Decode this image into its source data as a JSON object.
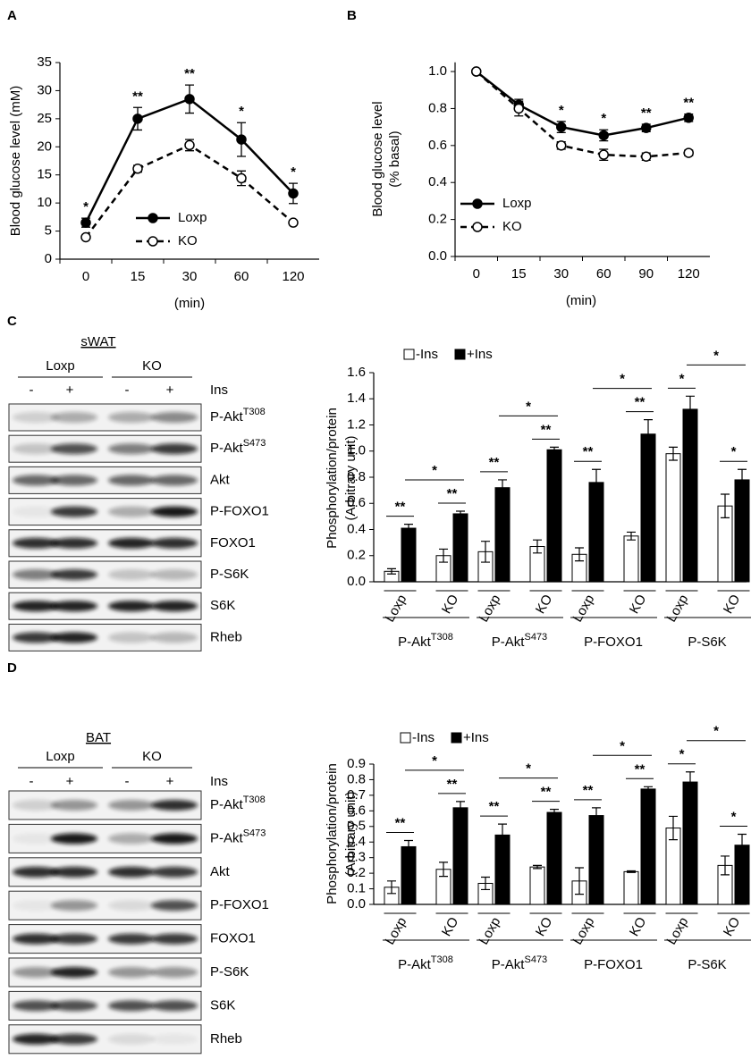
{
  "panel_labels": [
    "A",
    "B",
    "C",
    "D"
  ],
  "chart_data": [
    {
      "type": "line",
      "ylabel": "Blood glucose level (mM)",
      "xlabel": "(min)",
      "categories": [
        "0",
        "15",
        "30",
        "60",
        "120"
      ],
      "ylim": [
        0,
        35
      ],
      "yticks": [
        0,
        5,
        10,
        15,
        20,
        25,
        30,
        35
      ],
      "series": [
        {
          "name": "Loxp",
          "color": "#000000",
          "marker_fill": "#000000",
          "dash": false,
          "values": [
            6.5,
            25,
            28.5,
            21.3,
            11.7
          ],
          "errors": [
            0.8,
            2,
            2.5,
            3,
            1.8
          ]
        },
        {
          "name": "KO",
          "color": "#000000",
          "marker_fill": "#ffffff",
          "dash": true,
          "values": [
            3.9,
            16.1,
            20.3,
            14.4,
            6.5
          ],
          "errors": [
            0.3,
            0.6,
            1.0,
            1.3,
            0.4
          ]
        }
      ],
      "annotations": [
        "*",
        "**",
        "**",
        "*",
        "*"
      ]
    },
    {
      "type": "line",
      "ylabel": [
        "Blood glucose level",
        "(% basal)"
      ],
      "xlabel": "(min)",
      "categories": [
        "0",
        "15",
        "30",
        "60",
        "90",
        "120"
      ],
      "ylim": [
        0,
        1.05
      ],
      "yticks": [
        {
          "value": 0,
          "label": "0.0"
        },
        0.2,
        0.4,
        0.6,
        0.8,
        {
          "value": 1,
          "label": "1.0"
        }
      ],
      "series": [
        {
          "name": "Loxp",
          "color": "#000000",
          "marker_fill": "#000000",
          "dash": false,
          "values": [
            1.0,
            0.82,
            0.7,
            0.655,
            0.695,
            0.75
          ],
          "errors": [
            0.01,
            0.03,
            0.03,
            0.03,
            0.02,
            0.02
          ]
        },
        {
          "name": "KO",
          "color": "#000000",
          "marker_fill": "#ffffff",
          "dash": true,
          "values": [
            1.0,
            0.8,
            0.6,
            0.55,
            0.54,
            0.56
          ],
          "errors": [
            0.01,
            0.04,
            0.02,
            0.03,
            0.02,
            0.015
          ]
        }
      ],
      "annotations": [
        null,
        null,
        "*",
        "*",
        "**",
        "**"
      ]
    },
    {
      "type": "bar",
      "ylabel": [
        "Phosphorylation/protein",
        "(Arbitrary unit)"
      ],
      "categories": [
        "Loxp",
        "KO",
        "Loxp",
        "KO",
        "Loxp",
        "KO",
        "Loxp",
        "KO"
      ],
      "groups": [
        {
          "name": "P-Akt",
          "sup": "T308"
        },
        {
          "name": "P-Akt",
          "sup": "S473"
        },
        {
          "name": "P-FOXO1"
        },
        {
          "name": "P-S6K"
        }
      ],
      "ylim": [
        0,
        1.6
      ],
      "yticks": [
        {
          "value": 0,
          "label": "0.0"
        },
        0.2,
        0.4,
        0.6,
        0.8,
        {
          "value": 1,
          "label": "1.0"
        },
        1.2,
        1.4,
        1.6
      ],
      "series": [
        {
          "name": "-Ins",
          "color": "#ffffff",
          "values": [
            0.08,
            0.2,
            0.23,
            0.27,
            0.21,
            0.35,
            0.98,
            0.58
          ],
          "errors": [
            0.02,
            0.05,
            0.08,
            0.05,
            0.05,
            0.03,
            0.05,
            0.09
          ]
        },
        {
          "name": "+Ins",
          "color": "#000000",
          "values": [
            0.41,
            0.52,
            0.72,
            1.01,
            0.76,
            1.13,
            1.32,
            0.78
          ],
          "errors": [
            0.03,
            0.02,
            0.06,
            0.02,
            0.1,
            0.11,
            0.1,
            0.08
          ]
        }
      ],
      "significance": [
        [
          "**",
          "**",
          "*"
        ],
        [
          "**",
          "**",
          "*"
        ],
        [
          "**",
          "**",
          "*"
        ],
        [
          "*",
          "*",
          "*"
        ]
      ]
    },
    {
      "type": "bar",
      "ylabel": [
        "Phosphorylation/protein",
        "(Arbitrary unit)"
      ],
      "categories": [
        "Loxp",
        "KO",
        "Loxp",
        "KO",
        "Loxp",
        "KO",
        "Loxp",
        "KO"
      ],
      "groups": [
        {
          "name": "P-Akt",
          "sup": "T308"
        },
        {
          "name": "P-Akt",
          "sup": "S473"
        },
        {
          "name": "P-FOXO1"
        },
        {
          "name": "P-S6K"
        }
      ],
      "ylim": [
        0,
        0.9
      ],
      "yticks": [
        {
          "value": 0,
          "label": "0.0"
        },
        0.1,
        0.2,
        0.3,
        0.4,
        0.5,
        0.6,
        0.7,
        0.8,
        0.9
      ],
      "series": [
        {
          "name": "-Ins",
          "color": "#ffffff",
          "values": [
            0.11,
            0.225,
            0.135,
            0.24,
            0.15,
            0.21,
            0.49,
            0.25
          ],
          "errors": [
            0.04,
            0.045,
            0.04,
            0.01,
            0.085,
            0.005,
            0.075,
            0.06
          ]
        },
        {
          "name": "+Ins",
          "color": "#000000",
          "values": [
            0.37,
            0.62,
            0.445,
            0.59,
            0.57,
            0.74,
            0.785,
            0.38
          ],
          "errors": [
            0.04,
            0.04,
            0.07,
            0.02,
            0.05,
            0.015,
            0.065,
            0.07
          ]
        }
      ],
      "significance": [
        [
          "**",
          "**",
          "*"
        ],
        [
          "**",
          "**",
          "*"
        ],
        [
          "**",
          "**",
          "*"
        ],
        [
          "*",
          "*",
          "*"
        ]
      ]
    }
  ],
  "blots": [
    {
      "tissue": "sWAT",
      "groups": [
        "Loxp",
        "KO"
      ],
      "treatments": [
        "-",
        "+",
        "-",
        "+"
      ],
      "treatment_label": "Ins",
      "rows": [
        {
          "name": "P-Akt",
          "sup": "T308"
        },
        {
          "name": "P-Akt",
          "sup": "S473"
        },
        {
          "name": "Akt"
        },
        {
          "name": "P-FOXO1"
        },
        {
          "name": "FOXO1"
        },
        {
          "name": "P-S6K"
        },
        {
          "name": "S6K"
        },
        {
          "name": "Rheb"
        }
      ]
    },
    {
      "tissue": "BAT",
      "groups": [
        "Loxp",
        "KO"
      ],
      "treatments": [
        "-",
        "+",
        "-",
        "+"
      ],
      "treatment_label": "Ins",
      "rows": [
        {
          "name": "P-Akt",
          "sup": "T308"
        },
        {
          "name": "P-Akt",
          "sup": "S473"
        },
        {
          "name": "Akt"
        },
        {
          "name": "P-FOXO1"
        },
        {
          "name": "FOXO1"
        },
        {
          "name": "P-S6K"
        },
        {
          "name": "S6K"
        },
        {
          "name": "Rheb"
        }
      ]
    }
  ]
}
